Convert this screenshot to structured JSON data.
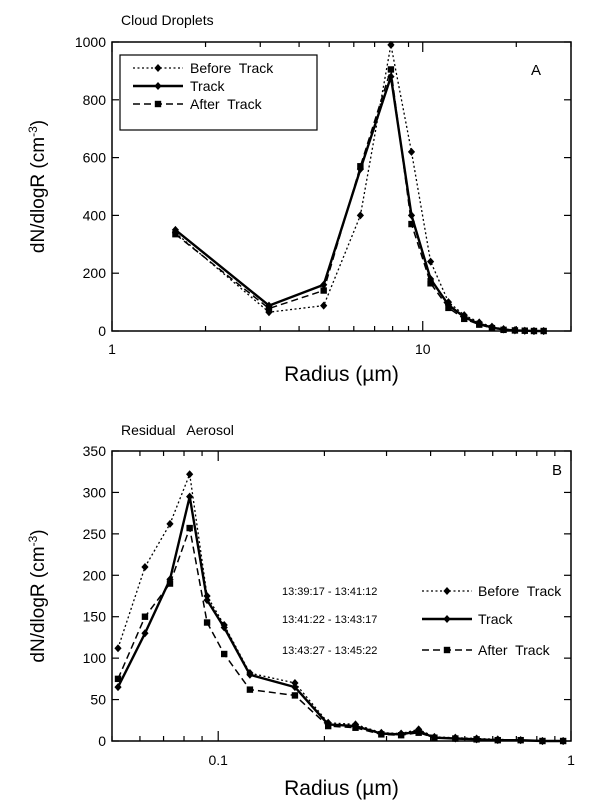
{
  "chart_data": [
    {
      "type": "line",
      "title": "Cloud Droplets",
      "panel_label": "A",
      "xlabel": "Radius (µm)",
      "ylabel": "dN/dlogR (cm",
      "ylabel_sup": "-3",
      "ylabel_close": ")",
      "xscale": "log",
      "xlim": [
        1,
        30
      ],
      "ylim": [
        0,
        1000
      ],
      "x_ticks": [
        {
          "v": 1,
          "label": "1"
        },
        {
          "v": 10,
          "label": "10"
        }
      ],
      "y_ticks": [
        0,
        200,
        400,
        600,
        800,
        1000
      ],
      "legend_position": "top-left",
      "annotations": [],
      "series": [
        {
          "name": "Before Track",
          "style": "dotted-diamond",
          "x": [
            1.6,
            3.2,
            4.8,
            6.3,
            7.9,
            9.2,
            10.6,
            12.1,
            13.6,
            15.2,
            16.7,
            18.2,
            19.8,
            21.3,
            22.8,
            24.5
          ],
          "y": [
            340,
            65,
            88,
            400,
            990,
            620,
            240,
            100,
            55,
            30,
            15,
            7,
            3,
            1,
            0,
            0
          ]
        },
        {
          "name": "Track",
          "style": "solid-diamond",
          "x": [
            1.6,
            3.2,
            4.8,
            6.3,
            7.9,
            9.2,
            10.6,
            12.1,
            13.6,
            15.2,
            16.7,
            18.2,
            19.8,
            21.3,
            22.8,
            24.5
          ],
          "y": [
            350,
            88,
            160,
            560,
            880,
            400,
            180,
            90,
            48,
            25,
            12,
            5,
            2,
            1,
            0,
            0
          ]
        },
        {
          "name": "After Track",
          "style": "dashed-square",
          "x": [
            1.6,
            3.2,
            4.8,
            6.3,
            7.9,
            9.2,
            10.6,
            12.1,
            13.6,
            15.2,
            16.7,
            18.2,
            19.8,
            21.3,
            22.8,
            24.5
          ],
          "y": [
            335,
            78,
            140,
            570,
            905,
            370,
            165,
            80,
            42,
            22,
            10,
            4,
            2,
            1,
            0,
            0
          ]
        }
      ]
    },
    {
      "type": "line",
      "title": "Residual   Aerosol",
      "panel_label": "B",
      "xlabel": "Radius (µm)",
      "ylabel": "dN/dlogR (cm",
      "ylabel_sup": "-3",
      "ylabel_close": ")",
      "xscale": "log",
      "xlim": [
        0.05,
        1
      ],
      "ylim": [
        0,
        350
      ],
      "x_ticks": [
        {
          "v": 0.1,
          "label": "0.1"
        },
        {
          "v": 1,
          "label": "1"
        }
      ],
      "y_ticks": [
        0,
        50,
        100,
        150,
        200,
        250,
        300,
        350
      ],
      "legend_position": "center-right",
      "annotations": [
        "13:39:17 - 13:41:12",
        "13:41:22 - 13:43:17",
        "13:43:27 - 13:45:22"
      ],
      "series": [
        {
          "name": "Before Track",
          "style": "dotted-diamond",
          "x": [
            0.052,
            0.062,
            0.073,
            0.083,
            0.093,
            0.104,
            0.123,
            0.165,
            0.205,
            0.245,
            0.29,
            0.33,
            0.37,
            0.41,
            0.47,
            0.54,
            0.62,
            0.72,
            0.83,
            0.95
          ],
          "y": [
            112,
            210,
            262,
            322,
            175,
            140,
            82,
            70,
            22,
            20,
            10,
            9,
            14,
            5,
            4,
            3,
            2,
            1,
            0,
            0
          ]
        },
        {
          "name": "Track",
          "style": "solid-diamond",
          "x": [
            0.052,
            0.062,
            0.073,
            0.083,
            0.093,
            0.104,
            0.123,
            0.165,
            0.205,
            0.245,
            0.29,
            0.33,
            0.37,
            0.41,
            0.47,
            0.54,
            0.62,
            0.72,
            0.83,
            0.95
          ],
          "y": [
            65,
            130,
            195,
            295,
            170,
            137,
            80,
            65,
            20,
            18,
            9,
            8,
            12,
            4,
            3,
            2,
            1,
            1,
            0,
            0
          ]
        },
        {
          "name": "After Track",
          "style": "dashed-square",
          "x": [
            0.052,
            0.062,
            0.073,
            0.083,
            0.093,
            0.104,
            0.123,
            0.165,
            0.205,
            0.245,
            0.29,
            0.33,
            0.37,
            0.41,
            0.47,
            0.54,
            0.62,
            0.72,
            0.83,
            0.95
          ],
          "y": [
            75,
            150,
            190,
            257,
            143,
            105,
            62,
            55,
            18,
            16,
            8,
            7,
            10,
            4,
            3,
            2,
            1,
            1,
            0,
            0
          ]
        }
      ]
    }
  ]
}
